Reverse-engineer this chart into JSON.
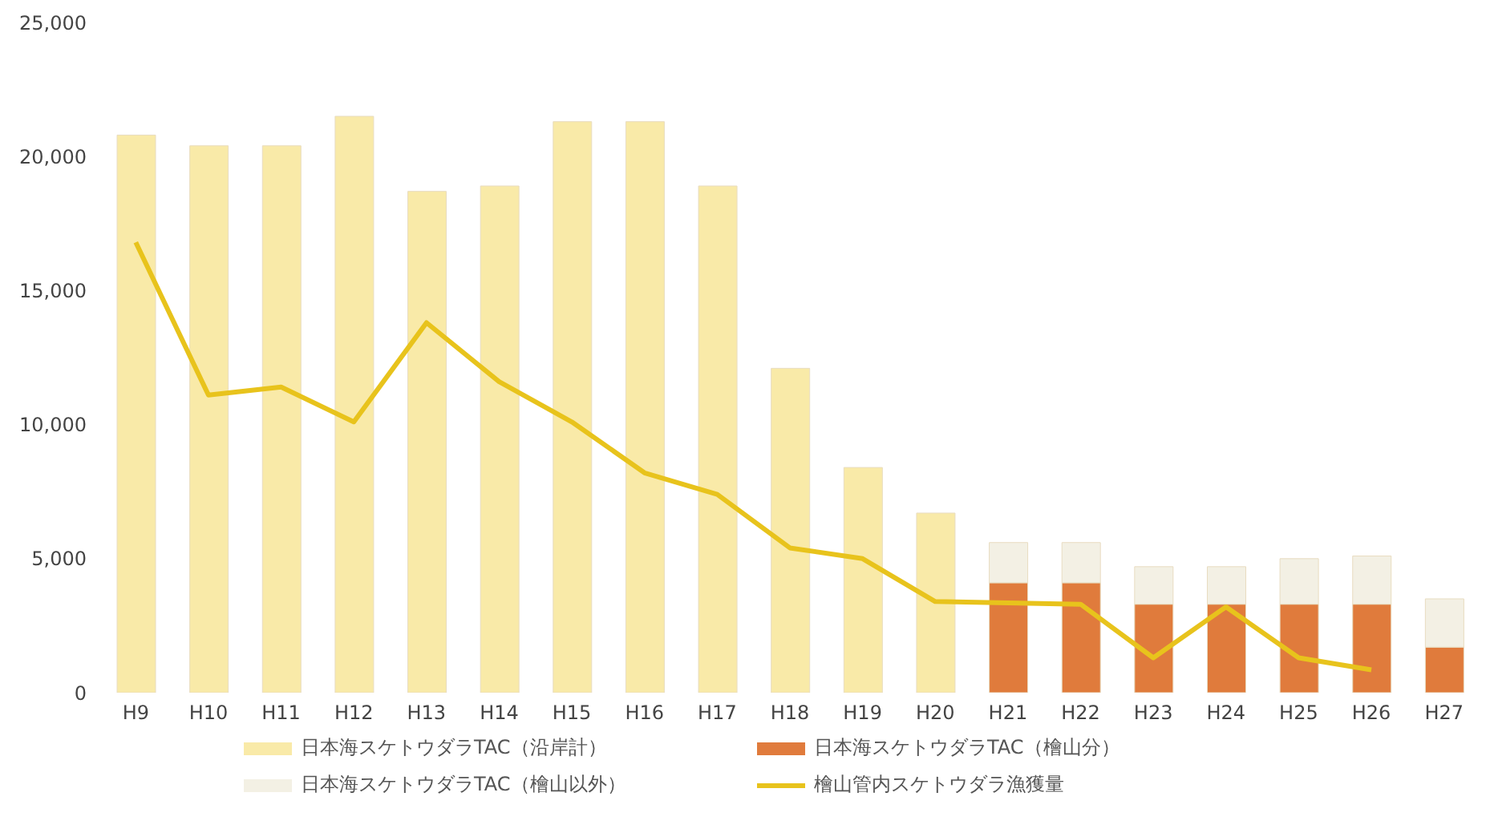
{
  "chart_data": {
    "type": "bar",
    "stacked": true,
    "categories": [
      "H9",
      "H10",
      "H11",
      "H12",
      "H13",
      "H14",
      "H15",
      "H16",
      "H17",
      "H18",
      "H19",
      "H20",
      "H21",
      "H22",
      "H23",
      "H24",
      "H25",
      "H26",
      "H27"
    ],
    "series": [
      {
        "name": "日本海スケトウダラTAC（沿岸計）",
        "color": "#f9eaa8",
        "values": [
          20800,
          20400,
          20400,
          21500,
          18700,
          18900,
          21300,
          21300,
          18900,
          12100,
          8400,
          6700,
          null,
          null,
          null,
          null,
          null,
          null,
          null
        ]
      },
      {
        "name": "日本海スケトウダラTAC（檜山分）",
        "color": "#e07b3c",
        "values": [
          null,
          null,
          null,
          null,
          null,
          null,
          null,
          null,
          null,
          null,
          null,
          null,
          4100,
          4100,
          3300,
          3300,
          3300,
          3300,
          1700
        ]
      },
      {
        "name": "日本海スケトウダラTAC（檜山以外）",
        "color": "#f3f0e4",
        "values": [
          null,
          null,
          null,
          null,
          null,
          null,
          null,
          null,
          null,
          null,
          null,
          null,
          1500,
          1500,
          1400,
          1400,
          1700,
          1800,
          1800
        ]
      },
      {
        "name": "檜山管内スケトウダラ漁獲量",
        "type": "line",
        "color": "#e8c31c",
        "values": [
          16800,
          11100,
          11400,
          10100,
          13800,
          11600,
          10100,
          8200,
          7400,
          5400,
          5000,
          3400,
          3350,
          3300,
          1300,
          3200,
          1300,
          850,
          null
        ]
      }
    ],
    "ylim": [
      0,
      25000
    ],
    "yticks": [
      {
        "value": 0,
        "label": "0"
      },
      {
        "value": 5000,
        "label": "5,000"
      },
      {
        "value": 10000,
        "label": "10,000"
      },
      {
        "value": 15000,
        "label": "15,000"
      },
      {
        "value": 20000,
        "label": "20,000"
      },
      {
        "value": 25000,
        "label": "25,000"
      }
    ],
    "legend": "bottom",
    "marker": "none",
    "grid": false
  }
}
